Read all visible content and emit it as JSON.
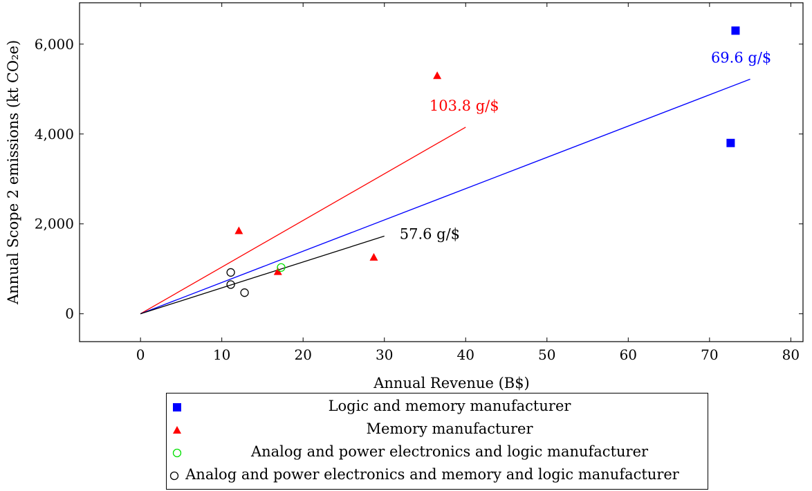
{
  "chart_data": {
    "type": "scatter",
    "xlabel": "Annual Revenue (B$)",
    "ylabel": "Annual Scope 2 emissions (kt CO₂e)",
    "xlim": [
      -7.5,
      81.5
    ],
    "ylim": [
      -620,
      6920
    ],
    "x_ticks": [
      0,
      10,
      20,
      30,
      40,
      50,
      60,
      70,
      80
    ],
    "x_tick_labels": [
      "0",
      "10",
      "20",
      "30",
      "40",
      "50",
      "60",
      "70",
      "80"
    ],
    "y_ticks": [
      0,
      2000,
      4000,
      6000
    ],
    "y_tick_labels": [
      "0",
      "2,000",
      "4,000",
      "6,000"
    ],
    "grid": false,
    "legend_position": "bottom-center-outside",
    "series": [
      {
        "name": "Logic and memory manufacturer",
        "marker": "filled-square",
        "color": "#0000ff",
        "points": [
          [
            73.2,
            6300
          ],
          [
            72.6,
            3800
          ]
        ]
      },
      {
        "name": "Memory manufacturer",
        "marker": "filled-triangle",
        "color": "#ff0000",
        "points": [
          [
            36.5,
            5300
          ],
          [
            12.1,
            1850
          ],
          [
            28.7,
            1260
          ],
          [
            16.9,
            940
          ]
        ]
      },
      {
        "name": "Analog and power electronics and logic manufacturer",
        "marker": "open-circle",
        "color": "#00e000",
        "points": [
          [
            17.3,
            1030
          ]
        ]
      },
      {
        "name": "Analog and power electronics and memory and logic manufacturer",
        "marker": "open-circle",
        "color": "#000000",
        "points": [
          [
            11.1,
            920
          ],
          [
            11.1,
            650
          ],
          [
            12.8,
            470
          ]
        ]
      }
    ],
    "fit_lines": [
      {
        "label": "103.8 g/$",
        "color": "#ff0000",
        "x": [
          0,
          40
        ],
        "y": [
          0,
          4152
        ]
      },
      {
        "label": "69.6 g/$",
        "color": "#0000ff",
        "x": [
          0,
          75
        ],
        "y": [
          0,
          5220
        ]
      },
      {
        "label": "57.6 g/$",
        "color": "#000000",
        "x": [
          0,
          30
        ],
        "y": [
          0,
          1728
        ]
      }
    ]
  }
}
